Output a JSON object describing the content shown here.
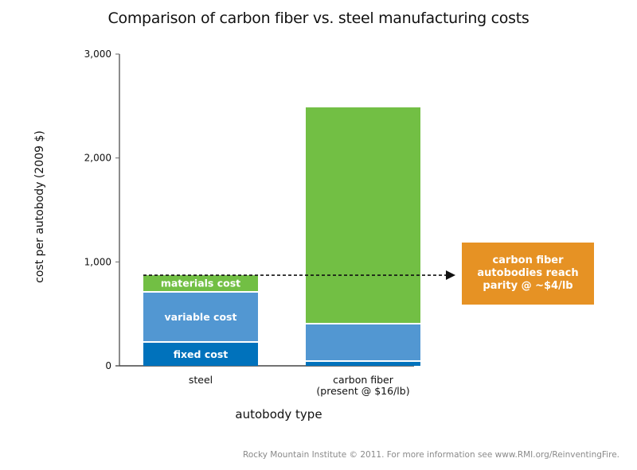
{
  "chart_data": {
    "type": "bar",
    "stacked": true,
    "title": "Comparison of carbon fiber vs. steel manufacturing costs",
    "xlabel": "autobody type",
    "ylabel": "cost per autobody (2009 $)",
    "ylim": [
      0,
      3000
    ],
    "yticks": [
      0,
      1000,
      2000,
      3000
    ],
    "ytick_labels": [
      "0",
      "1,000",
      "2,000",
      "3,000"
    ],
    "grid": false,
    "categories": [
      "steel",
      "carbon fiber\n(present @ $16/lb)"
    ],
    "category_labels": [
      [
        "steel"
      ],
      [
        "carbon fiber",
        "(present @ $16/lb)"
      ]
    ],
    "series": [
      {
        "name": "fixed cost",
        "color": "#0072bc",
        "values": [
          222,
          38
        ]
      },
      {
        "name": "variable cost",
        "color": "#5297d2",
        "values": [
          482,
          360
        ]
      },
      {
        "name": "materials cost",
        "color": "#72bf44",
        "values": [
          168,
          2089
        ]
      }
    ],
    "segment_labels_on": "steel",
    "reference_line": {
      "value": 872,
      "style": "dashed",
      "arrow": true
    },
    "annotation": {
      "lines": [
        "carbon fiber",
        "autobodies reach",
        "parity @ ~$4/lb"
      ],
      "color": "#e69224"
    }
  },
  "footer": "Rocky Mountain Institute © 2011. For more information see www.RMI.org/ReinventingFire."
}
